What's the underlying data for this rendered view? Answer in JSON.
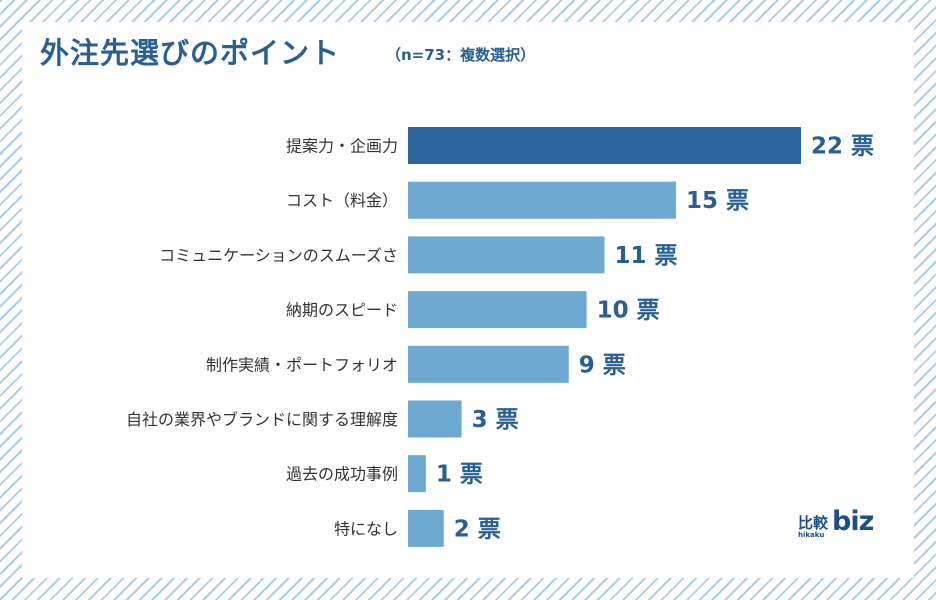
{
  "header": {
    "title": "外注先選びのポイント",
    "subtitle": "（n=73：複数選択）"
  },
  "logo": {
    "kanji": "比較",
    "romaji": "hikaku",
    "biz": "biz"
  },
  "colors": {
    "highlight": "#2a65a0",
    "bar": "#6da9d0",
    "text": "#2a5f93"
  },
  "chart_data": {
    "type": "bar",
    "orientation": "horizontal",
    "title": "外注先選びのポイント",
    "subtitle": "（n=73：複数選択）",
    "unit": "票",
    "categories": [
      "提案力・企画力",
      "コスト（料金）",
      "コミュニケーションのスムーズさ",
      "納期のスピード",
      "制作実績・ポートフォリオ",
      "自社の業界やブランドに関する理解度",
      "過去の成功事例",
      "特になし"
    ],
    "values": [
      22,
      15,
      11,
      10,
      9,
      3,
      1,
      2
    ],
    "value_labels": [
      "22 票",
      "15 票",
      "11 票",
      "10 票",
      "9 票",
      "3 票",
      "1 票",
      "2 票"
    ],
    "highlight_index": 0,
    "xlim": [
      0,
      22
    ]
  }
}
